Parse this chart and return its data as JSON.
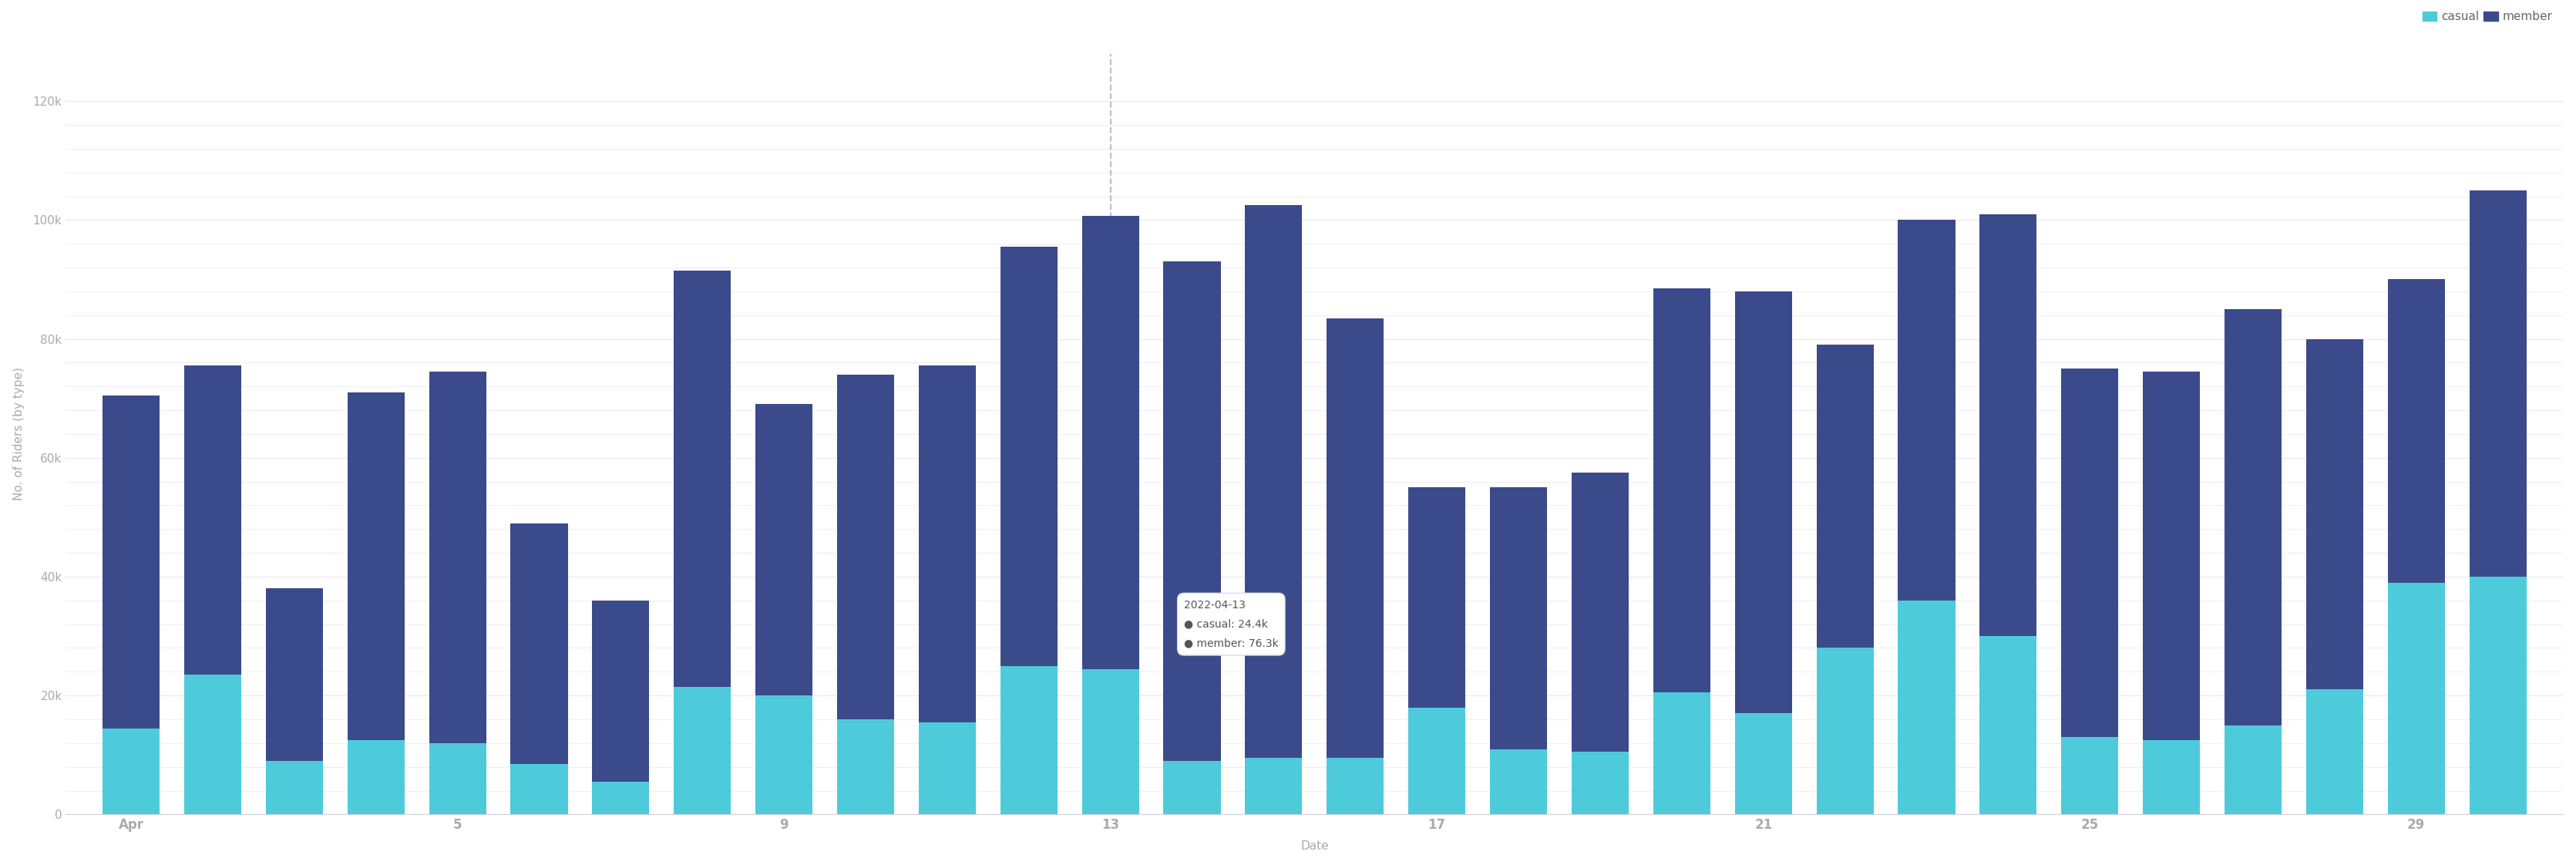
{
  "dates": [
    "2022-04-01",
    "2022-04-02",
    "2022-04-03",
    "2022-04-04",
    "2022-04-05",
    "2022-04-06",
    "2022-04-07",
    "2022-04-08",
    "2022-04-09",
    "2022-04-10",
    "2022-04-11",
    "2022-04-12",
    "2022-04-13",
    "2022-04-14",
    "2022-04-15",
    "2022-04-16",
    "2022-04-17",
    "2022-04-18",
    "2022-04-19",
    "2022-04-20",
    "2022-04-21",
    "2022-04-22",
    "2022-04-23",
    "2022-04-24",
    "2022-04-25",
    "2022-04-26",
    "2022-04-27",
    "2022-04-28",
    "2022-04-29",
    "2022-04-30"
  ],
  "casual": [
    14500,
    23500,
    9000,
    12500,
    12000,
    8500,
    5500,
    21500,
    20000,
    16000,
    15500,
    25000,
    24400,
    9000,
    9500,
    9500,
    18000,
    11000,
    10500,
    20500,
    17000,
    28000,
    36000,
    30000,
    13000,
    12500,
    15000,
    21000,
    39000,
    40000
  ],
  "member": [
    56000,
    52000,
    29000,
    58500,
    62500,
    40500,
    30500,
    70000,
    49000,
    58000,
    60000,
    70500,
    76300,
    84000,
    93000,
    74000,
    37000,
    44000,
    47000,
    68000,
    71000,
    51000,
    64000,
    71000,
    62000,
    62000,
    70000,
    59000,
    51000,
    65000
  ],
  "highlight_date": "2022-04-13",
  "highlight_casual": 24400,
  "highlight_member": 76300,
  "casual_color": "#4ECBDA",
  "member_color": "#3B4A8A",
  "background_color": "#ffffff",
  "ylabel": "No. of Riders (by type)",
  "xlabel": "Date",
  "ylim": [
    0,
    128000
  ],
  "yticks": [
    0,
    20000,
    40000,
    60000,
    80000,
    100000,
    120000
  ],
  "ytick_labels": [
    "0",
    "20k",
    "40k",
    "60k",
    "80k",
    "100k",
    "120k"
  ],
  "minor_yticks": [
    104000,
    108000,
    112000,
    116000,
    92000,
    96000,
    84000,
    88000,
    76000,
    72000,
    68000,
    64000,
    56000,
    52000,
    48000,
    44000,
    36000,
    32000,
    28000,
    24000,
    16000,
    12000,
    8000,
    4000
  ],
  "grid_color": "#e8e8f0",
  "axis_label_fontsize": 11,
  "tick_fontsize": 11,
  "legend_fontsize": 11
}
